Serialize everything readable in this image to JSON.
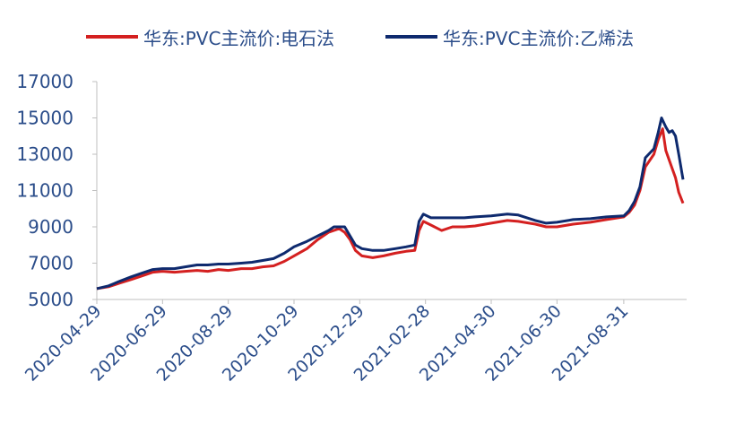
{
  "chart_data": {
    "type": "line",
    "title": "",
    "xlabel": "",
    "ylabel": "",
    "ylim": [
      5000,
      17000
    ],
    "yticks": [
      5000,
      7000,
      9000,
      11000,
      13000,
      15000,
      17000
    ],
    "xticks": [
      "2020-04-29",
      "2020-06-29",
      "2020-08-29",
      "2020-10-29",
      "2020-12-29",
      "2021-02-28",
      "2021-04-30",
      "2021-06-30",
      "2021-08-31"
    ],
    "x_range": [
      "2020-04-29",
      "2021-10-25"
    ],
    "grid": false,
    "legend_position": "top",
    "series": [
      {
        "name": "华东:PVC主流价:电石法",
        "color": "#d42020",
        "points": [
          [
            "2020-04-29",
            5600
          ],
          [
            "2020-05-10",
            5700
          ],
          [
            "2020-05-20",
            5900
          ],
          [
            "2020-05-31",
            6100
          ],
          [
            "2020-06-10",
            6300
          ],
          [
            "2020-06-20",
            6500
          ],
          [
            "2020-06-29",
            6550
          ],
          [
            "2020-07-10",
            6500
          ],
          [
            "2020-07-20",
            6550
          ],
          [
            "2020-07-31",
            6600
          ],
          [
            "2020-08-10",
            6550
          ],
          [
            "2020-08-20",
            6650
          ],
          [
            "2020-08-29",
            6600
          ],
          [
            "2020-09-10",
            6700
          ],
          [
            "2020-09-20",
            6700
          ],
          [
            "2020-09-30",
            6800
          ],
          [
            "2020-10-10",
            6850
          ],
          [
            "2020-10-20",
            7100
          ],
          [
            "2020-10-29",
            7400
          ],
          [
            "2020-11-10",
            7800
          ],
          [
            "2020-11-20",
            8300
          ],
          [
            "2020-11-30",
            8700
          ],
          [
            "2020-12-10",
            8900
          ],
          [
            "2020-12-15",
            8700
          ],
          [
            "2020-12-20",
            8300
          ],
          [
            "2020-12-25",
            7700
          ],
          [
            "2020-12-31",
            7400
          ],
          [
            "2021-01-10",
            7300
          ],
          [
            "2021-01-20",
            7400
          ],
          [
            "2021-01-31",
            7550
          ],
          [
            "2021-02-10",
            7650
          ],
          [
            "2021-02-18",
            7700
          ],
          [
            "2021-02-22",
            8800
          ],
          [
            "2021-02-26",
            9300
          ],
          [
            "2021-03-05",
            9100
          ],
          [
            "2021-03-15",
            8800
          ],
          [
            "2021-03-25",
            9000
          ],
          [
            "2021-04-05",
            9000
          ],
          [
            "2021-04-15",
            9050
          ],
          [
            "2021-04-30",
            9200
          ],
          [
            "2021-05-15",
            9350
          ],
          [
            "2021-05-25",
            9300
          ],
          [
            "2021-06-10",
            9150
          ],
          [
            "2021-06-20",
            9000
          ],
          [
            "2021-06-30",
            9000
          ],
          [
            "2021-07-15",
            9150
          ],
          [
            "2021-07-31",
            9250
          ],
          [
            "2021-08-15",
            9400
          ],
          [
            "2021-08-31",
            9550
          ],
          [
            "2021-09-05",
            9800
          ],
          [
            "2021-09-10",
            10200
          ],
          [
            "2021-09-15",
            11000
          ],
          [
            "2021-09-20",
            12300
          ],
          [
            "2021-09-28",
            13000
          ],
          [
            "2021-10-02",
            13800
          ],
          [
            "2021-10-06",
            14400
          ],
          [
            "2021-10-09",
            13200
          ],
          [
            "2021-10-12",
            12700
          ],
          [
            "2021-10-15",
            12200
          ],
          [
            "2021-10-18",
            11700
          ],
          [
            "2021-10-21",
            10900
          ],
          [
            "2021-10-25",
            10300
          ]
        ]
      },
      {
        "name": "华东:PVC主流价:乙烯法",
        "color": "#0e2a6e",
        "points": [
          [
            "2020-04-29",
            5600
          ],
          [
            "2020-05-10",
            5750
          ],
          [
            "2020-05-20",
            6000
          ],
          [
            "2020-05-31",
            6250
          ],
          [
            "2020-06-10",
            6450
          ],
          [
            "2020-06-20",
            6650
          ],
          [
            "2020-06-29",
            6700
          ],
          [
            "2020-07-10",
            6700
          ],
          [
            "2020-07-20",
            6800
          ],
          [
            "2020-07-31",
            6900
          ],
          [
            "2020-08-10",
            6900
          ],
          [
            "2020-08-20",
            6950
          ],
          [
            "2020-08-29",
            6950
          ],
          [
            "2020-09-10",
            7000
          ],
          [
            "2020-09-20",
            7050
          ],
          [
            "2020-09-30",
            7150
          ],
          [
            "2020-10-10",
            7250
          ],
          [
            "2020-10-20",
            7550
          ],
          [
            "2020-10-29",
            7900
          ],
          [
            "2020-11-10",
            8200
          ],
          [
            "2020-11-20",
            8500
          ],
          [
            "2020-11-30",
            8800
          ],
          [
            "2020-12-05",
            9000
          ],
          [
            "2020-12-15",
            9000
          ],
          [
            "2020-12-20",
            8500
          ],
          [
            "2020-12-25",
            8000
          ],
          [
            "2020-12-31",
            7800
          ],
          [
            "2021-01-10",
            7700
          ],
          [
            "2021-01-20",
            7700
          ],
          [
            "2021-01-31",
            7800
          ],
          [
            "2021-02-10",
            7900
          ],
          [
            "2021-02-18",
            8000
          ],
          [
            "2021-02-22",
            9300
          ],
          [
            "2021-02-26",
            9700
          ],
          [
            "2021-03-05",
            9500
          ],
          [
            "2021-03-15",
            9500
          ],
          [
            "2021-03-25",
            9500
          ],
          [
            "2021-04-05",
            9500
          ],
          [
            "2021-04-15",
            9550
          ],
          [
            "2021-04-30",
            9600
          ],
          [
            "2021-05-15",
            9700
          ],
          [
            "2021-05-25",
            9650
          ],
          [
            "2021-06-10",
            9350
          ],
          [
            "2021-06-20",
            9200
          ],
          [
            "2021-06-30",
            9250
          ],
          [
            "2021-07-15",
            9400
          ],
          [
            "2021-07-31",
            9450
          ],
          [
            "2021-08-15",
            9550
          ],
          [
            "2021-08-31",
            9600
          ],
          [
            "2021-09-05",
            9900
          ],
          [
            "2021-09-10",
            10400
          ],
          [
            "2021-09-15",
            11200
          ],
          [
            "2021-09-20",
            12800
          ],
          [
            "2021-09-28",
            13300
          ],
          [
            "2021-10-02",
            14200
          ],
          [
            "2021-10-05",
            15000
          ],
          [
            "2021-10-09",
            14500
          ],
          [
            "2021-10-12",
            14200
          ],
          [
            "2021-10-15",
            14300
          ],
          [
            "2021-10-18",
            14000
          ],
          [
            "2021-10-21",
            13000
          ],
          [
            "2021-10-25",
            11600
          ]
        ]
      }
    ]
  }
}
